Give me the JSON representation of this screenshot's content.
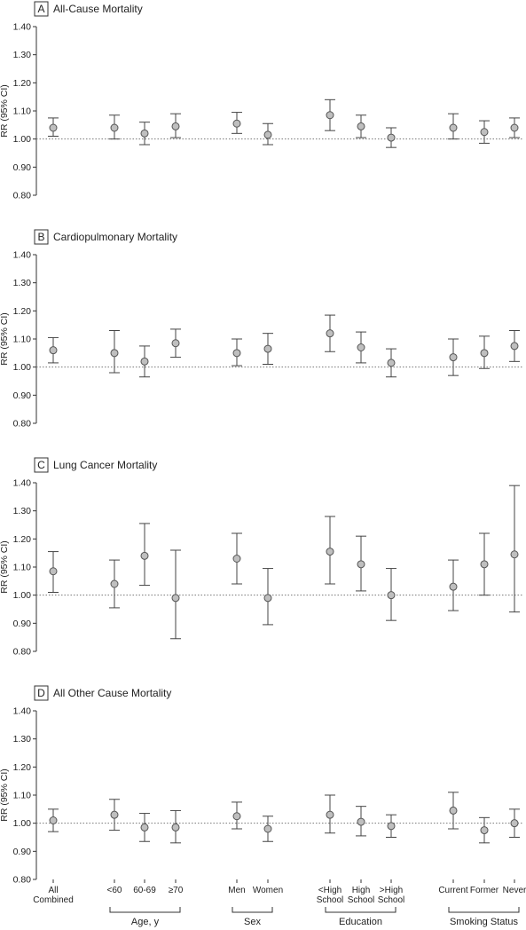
{
  "chart_data": {
    "type": "scatter",
    "style": {
      "marker_fill": "#bfbfbf",
      "marker_stroke": "#555555",
      "errorbar_color": "#444444",
      "reference_line_color": "#777777",
      "axis_color": "#333333"
    },
    "ylabel": "RR (95% CI)",
    "ylim": [
      0.8,
      1.4
    ],
    "yticks": [
      "0.80",
      "0.90",
      "1.00",
      "1.10",
      "1.20",
      "1.30",
      "1.40"
    ],
    "reference_y": 1.0,
    "categories": [
      "All\nCombined",
      "<60",
      "60-69",
      "≥70",
      "Men",
      "Women",
      "<High\nSchool",
      "High\nSchool",
      ">High\nSchool",
      "Current",
      "Former",
      "Never"
    ],
    "groups": [
      {
        "label": "Age, y",
        "from": 1,
        "to": 3
      },
      {
        "label": "Sex",
        "from": 4,
        "to": 5
      },
      {
        "label": "Education",
        "from": 6,
        "to": 8
      },
      {
        "label": "Smoking Status",
        "from": 9,
        "to": 11
      }
    ],
    "panels": [
      {
        "letter": "A",
        "title": "All-Cause Mortality",
        "rr": [
          1.04,
          1.04,
          1.02,
          1.045,
          1.055,
          1.015,
          1.085,
          1.045,
          1.005,
          1.04,
          1.025,
          1.04
        ],
        "lower": [
          1.01,
          1.0,
          0.98,
          1.005,
          1.02,
          0.98,
          1.03,
          1.005,
          0.97,
          1.0,
          0.985,
          1.005
        ],
        "upper": [
          1.075,
          1.085,
          1.06,
          1.09,
          1.095,
          1.055,
          1.14,
          1.085,
          1.04,
          1.09,
          1.065,
          1.075
        ]
      },
      {
        "letter": "B",
        "title": "Cardiopulmonary Mortality",
        "rr": [
          1.06,
          1.05,
          1.02,
          1.085,
          1.05,
          1.065,
          1.12,
          1.07,
          1.015,
          1.035,
          1.05,
          1.075
        ],
        "lower": [
          1.015,
          0.98,
          0.965,
          1.035,
          1.005,
          1.01,
          1.055,
          1.015,
          0.965,
          0.97,
          0.995,
          1.02
        ],
        "upper": [
          1.105,
          1.13,
          1.075,
          1.135,
          1.1,
          1.12,
          1.185,
          1.125,
          1.065,
          1.1,
          1.11,
          1.13
        ]
      },
      {
        "letter": "C",
        "title": "Lung Cancer Mortality",
        "rr": [
          1.085,
          1.04,
          1.14,
          0.99,
          1.13,
          0.99,
          1.155,
          1.11,
          1.0,
          1.03,
          1.11,
          1.145
        ],
        "lower": [
          1.01,
          0.955,
          1.035,
          0.845,
          1.04,
          0.895,
          1.04,
          1.015,
          0.91,
          0.945,
          1.0,
          0.94
        ],
        "upper": [
          1.155,
          1.125,
          1.255,
          1.16,
          1.22,
          1.095,
          1.28,
          1.21,
          1.095,
          1.125,
          1.22,
          1.39
        ]
      },
      {
        "letter": "D",
        "title": "All Other Cause Mortality",
        "rr": [
          1.01,
          1.03,
          0.985,
          0.985,
          1.025,
          0.98,
          1.03,
          1.005,
          0.99,
          1.045,
          0.975,
          1.0
        ],
        "lower": [
          0.97,
          0.975,
          0.935,
          0.93,
          0.98,
          0.935,
          0.965,
          0.955,
          0.95,
          0.98,
          0.93,
          0.95
        ],
        "upper": [
          1.05,
          1.085,
          1.035,
          1.045,
          1.075,
          1.025,
          1.1,
          1.06,
          1.03,
          1.11,
          1.02,
          1.05
        ]
      }
    ]
  }
}
